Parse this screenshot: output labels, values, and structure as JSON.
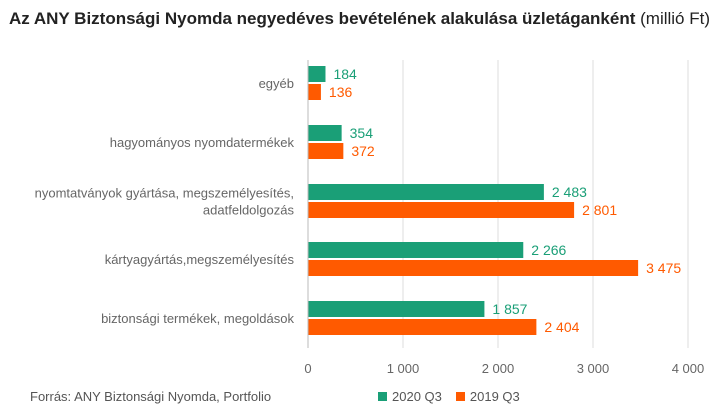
{
  "chart_data": {
    "type": "bar",
    "orientation": "horizontal",
    "title_bold": "Az ANY Biztonsági Nyomda negyedéves bevételének alakulása üzletáganként",
    "title_unit": "(millió Ft)",
    "categories": [
      [
        "egyéb"
      ],
      [
        "hagyományos nyomdatermékek"
      ],
      [
        "nyomtatványok gyártása, megszemélyesítés,",
        "adatfeldolgozás"
      ],
      [
        "kártyagyártás,megszemélyesítés"
      ],
      [
        "biztonsági termékek, megoldások"
      ]
    ],
    "series": [
      {
        "name": "2020 Q3",
        "color": "#1a9f77",
        "values": [
          184,
          354,
          2483,
          2266,
          1857
        ],
        "labels": [
          "184",
          "354",
          "2 483",
          "2 266",
          "1 857"
        ]
      },
      {
        "name": "2019 Q3",
        "color": "#ff5a00",
        "values": [
          136,
          372,
          2801,
          3475,
          2404
        ],
        "labels": [
          "136",
          "372",
          "2 801",
          "3 475",
          "2 404"
        ]
      }
    ],
    "xlim": [
      0,
      4000
    ],
    "xticks": [
      0,
      1000,
      2000,
      3000,
      4000
    ],
    "xtick_labels": [
      "0",
      "1 000",
      "2 000",
      "3 000",
      "4 000"
    ],
    "grid": "vertical",
    "legend_position": "bottom"
  },
  "source": "Forrás: ANY Biztonsági Nyomda, Portfolio"
}
